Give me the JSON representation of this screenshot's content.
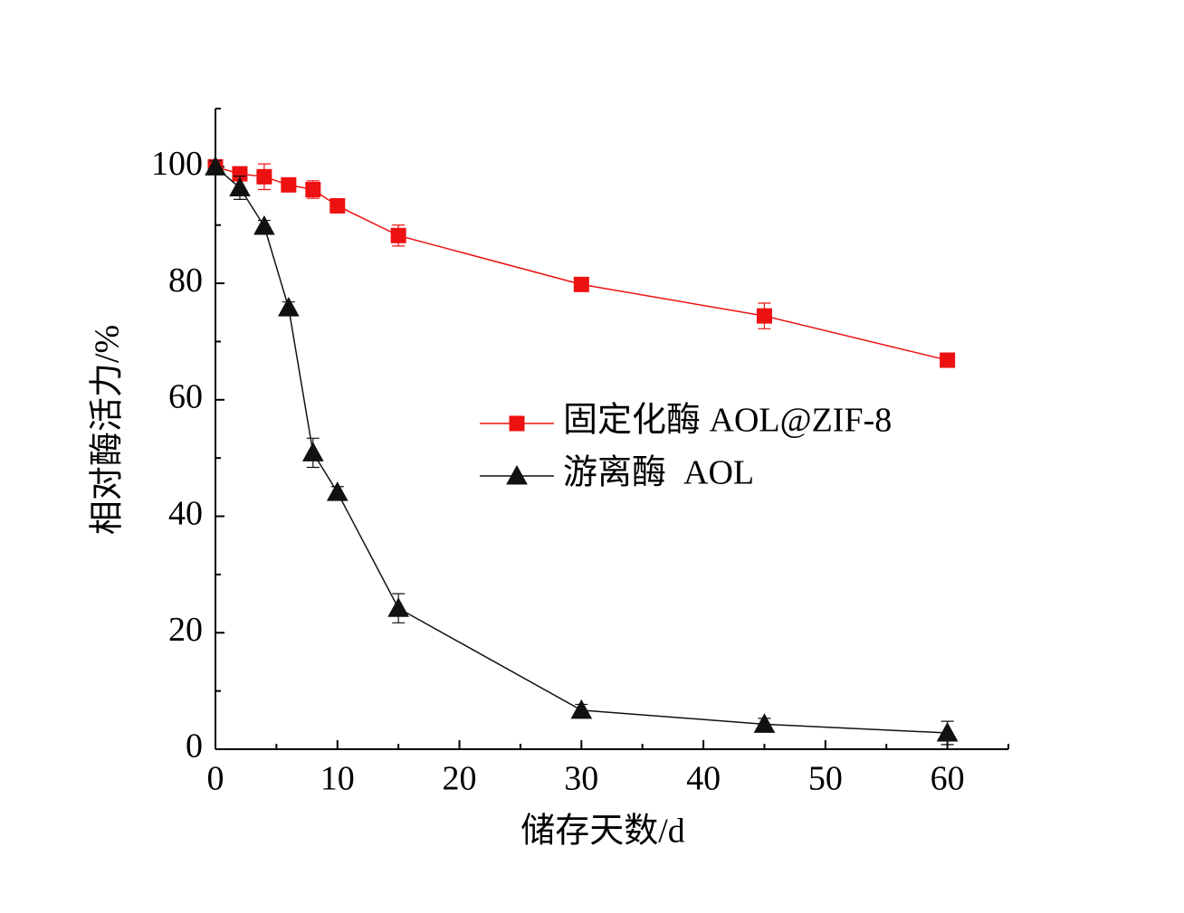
{
  "chart_data": {
    "type": "line",
    "x_label": "储存天数/d",
    "y_label": "相对酶活力/%",
    "x": [
      0,
      2,
      4,
      6,
      8,
      10,
      15,
      30,
      45,
      60
    ],
    "series": [
      {
        "name": "固定化酶 AOL@ZIF-8",
        "color": "#ee1111",
        "marker": "square",
        "values": [
          100,
          98.8,
          98.3,
          96.9,
          96.1,
          93.3,
          88.2,
          79.8,
          74.4,
          66.8
        ],
        "errors": [
          0.5,
          0.8,
          2.2,
          0.8,
          1.5,
          0.8,
          1.8,
          1,
          2.2,
          1
        ]
      },
      {
        "name": "游离酶  AOL",
        "color": "#111111",
        "marker": "triangle",
        "values": [
          100,
          96.4,
          89.8,
          75.8,
          50.9,
          44.1,
          24.2,
          6.7,
          4.3,
          2.8
        ],
        "errors": [
          1,
          2,
          1,
          1,
          2.5,
          1,
          2.5,
          1,
          1,
          2
        ]
      }
    ],
    "xlim": [
      0,
      65
    ],
    "xticks": [
      0,
      10,
      20,
      30,
      40,
      50,
      60
    ],
    "ylim": [
      0,
      110
    ],
    "yticks": [
      0,
      20,
      40,
      60,
      80,
      100
    ],
    "legend": "center-right"
  }
}
